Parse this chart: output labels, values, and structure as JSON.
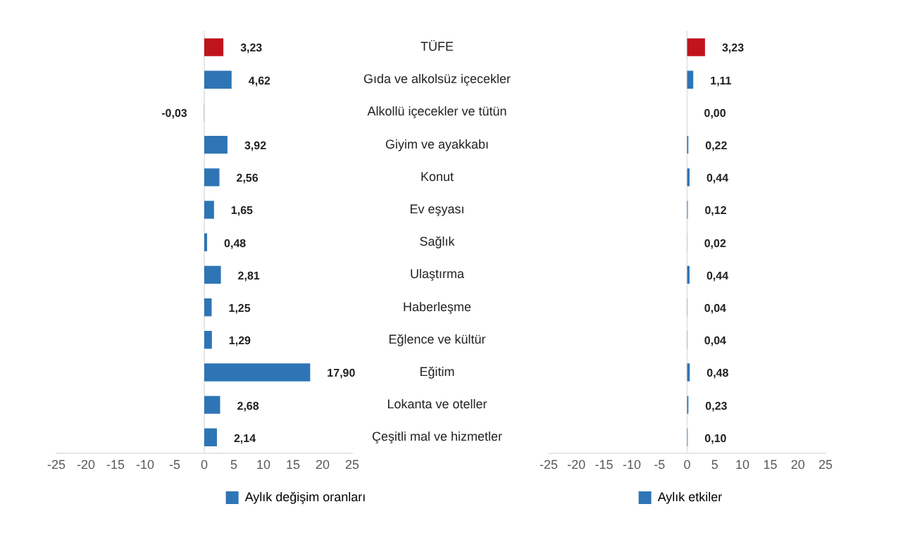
{
  "chart_data": [
    {
      "type": "bar",
      "orientation": "horizontal",
      "categories": [
        "TÜFE",
        "Gıda ve alkolsüz içecekler",
        "Alkollü içecekler ve tütün",
        "Giyim ve ayakkabı",
        "Konut",
        "Ev eşyası",
        "Sağlık",
        "Ulaştırma",
        "Haberleşme",
        "Eğlence ve kültür",
        "Eğitim",
        "Lokanta ve oteller",
        "Çeşitli mal ve hizmetler"
      ],
      "series": [
        {
          "name": "Aylık değişim oranları",
          "color": "#2e75b6",
          "colors": [
            "#c0141c",
            "#2e75b6",
            "#2e75b6",
            "#2e75b6",
            "#2e75b6",
            "#2e75b6",
            "#2e75b6",
            "#2e75b6",
            "#2e75b6",
            "#2e75b6",
            "#2e75b6",
            "#2e75b6",
            "#2e75b6"
          ],
          "values": [
            3.23,
            4.62,
            -0.03,
            3.92,
            2.56,
            1.65,
            0.48,
            2.81,
            1.25,
            1.29,
            17.9,
            2.68,
            2.14
          ],
          "value_labels": [
            "3,23",
            "4,62",
            "-0,03",
            "3,92",
            "2,56",
            "1,65",
            "0,48",
            "2,81",
            "1,25",
            "1,29",
            "17,90",
            "2,68",
            "2,14"
          ]
        }
      ],
      "xlim": [
        -25,
        25
      ],
      "xticks": [
        -25,
        -20,
        -15,
        -10,
        -5,
        0,
        5,
        10,
        15,
        20,
        25
      ],
      "legend": "bottom"
    },
    {
      "type": "bar",
      "orientation": "horizontal",
      "categories": [
        null,
        null,
        null,
        null,
        null,
        null,
        null,
        null,
        null,
        null,
        null,
        null,
        null
      ],
      "series": [
        {
          "name": "Aylık etkiler",
          "color": "#2e75b6",
          "colors": [
            "#c0141c",
            "#2e75b6",
            "#2e75b6",
            "#2e75b6",
            "#2e75b6",
            "#2e75b6",
            "#2e75b6",
            "#2e75b6",
            "#2e75b6",
            "#2e75b6",
            "#2e75b6",
            "#2e75b6",
            "#2e75b6"
          ],
          "values": [
            3.23,
            1.11,
            0.0,
            0.22,
            0.44,
            0.12,
            0.02,
            0.44,
            0.04,
            0.04,
            0.48,
            0.23,
            0.1
          ],
          "value_labels": [
            "3,23",
            "1,11",
            "0,00",
            "0,22",
            "0,44",
            "0,12",
            "0,02",
            "0,44",
            "0,04",
            "0,04",
            "0,48",
            "0,23",
            "0,10"
          ]
        }
      ],
      "xlim": [
        -25,
        25
      ],
      "xticks": [
        -25,
        -20,
        -15,
        -10,
        -5,
        0,
        5,
        10,
        15,
        20,
        25
      ],
      "legend": "bottom"
    }
  ]
}
